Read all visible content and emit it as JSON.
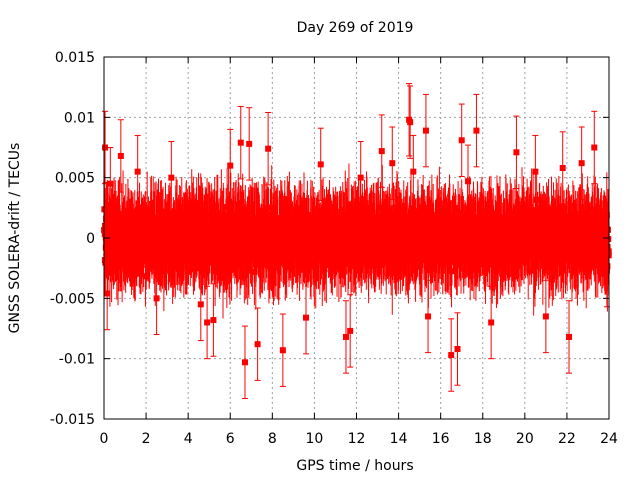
{
  "chart_data": {
    "type": "scatter",
    "title": "Day 269 of 2019",
    "xlabel": "GPS time / hours",
    "ylabel": "GNSS SOLERA-drift / TECUs",
    "xlim": [
      0,
      24
    ],
    "ylim": [
      -0.015,
      0.015
    ],
    "xticks": [
      "0",
      "2",
      "4",
      "6",
      "8",
      "10",
      "12",
      "14",
      "16",
      "18",
      "20",
      "22",
      "24"
    ],
    "yticks": [
      "0.015",
      "0.01",
      "0.005",
      "0",
      "-0.005",
      "-0.01",
      "-0.015"
    ],
    "grid": true,
    "legend": "none",
    "series": [
      {
        "color": "#ff0000",
        "marker": "square",
        "error_bars": true,
        "note_values": "dense cloud of several thousand points; representative samples listed",
        "x": [
          0.05,
          0.1,
          0.15,
          0.3,
          0.8,
          1.6,
          2.5,
          3.2,
          4.6,
          4.9,
          5.2,
          6.0,
          6.5,
          6.7,
          6.9,
          7.3,
          7.8,
          8.5,
          9.6,
          10.3,
          11.5,
          11.7,
          12.2,
          13.2,
          13.7,
          14.5,
          14.55,
          14.7,
          15.3,
          15.4,
          16.5,
          16.8,
          17.0,
          17.3,
          17.7,
          18.4,
          19.6,
          20.5,
          21.0,
          21.8,
          22.1,
          22.7,
          23.3,
          23.9
        ],
        "y": [
          0.0075,
          0.0016,
          -0.0046,
          0.0045,
          0.0068,
          0.0055,
          -0.005,
          0.005,
          -0.0055,
          -0.007,
          -0.0068,
          0.006,
          0.0079,
          -0.0103,
          0.0078,
          -0.0088,
          0.0074,
          -0.0093,
          -0.0066,
          0.0061,
          -0.0082,
          -0.0077,
          0.005,
          0.0072,
          0.0062,
          0.0098,
          0.0096,
          0.0055,
          0.0089,
          -0.0065,
          -0.0097,
          -0.0092,
          0.0081,
          0.0047,
          0.0089,
          -0.007,
          0.0071,
          0.0055,
          -0.0065,
          0.0058,
          -0.0082,
          0.0062,
          0.0075,
          -0.0027
        ],
        "err": [
          0.003,
          0.003,
          0.003,
          0.003,
          0.003,
          0.003,
          0.003,
          0.003,
          0.003,
          0.003,
          0.003,
          0.003,
          0.003,
          0.003,
          0.003,
          0.003,
          0.003,
          0.003,
          0.003,
          0.003,
          0.003,
          0.003,
          0.003,
          0.003,
          0.003,
          0.003,
          0.003,
          0.003,
          0.003,
          0.003,
          0.003,
          0.003,
          0.003,
          0.003,
          0.003,
          0.003,
          0.003,
          0.003,
          0.003,
          0.003,
          0.003,
          0.003,
          0.003,
          0.003
        ]
      }
    ]
  }
}
